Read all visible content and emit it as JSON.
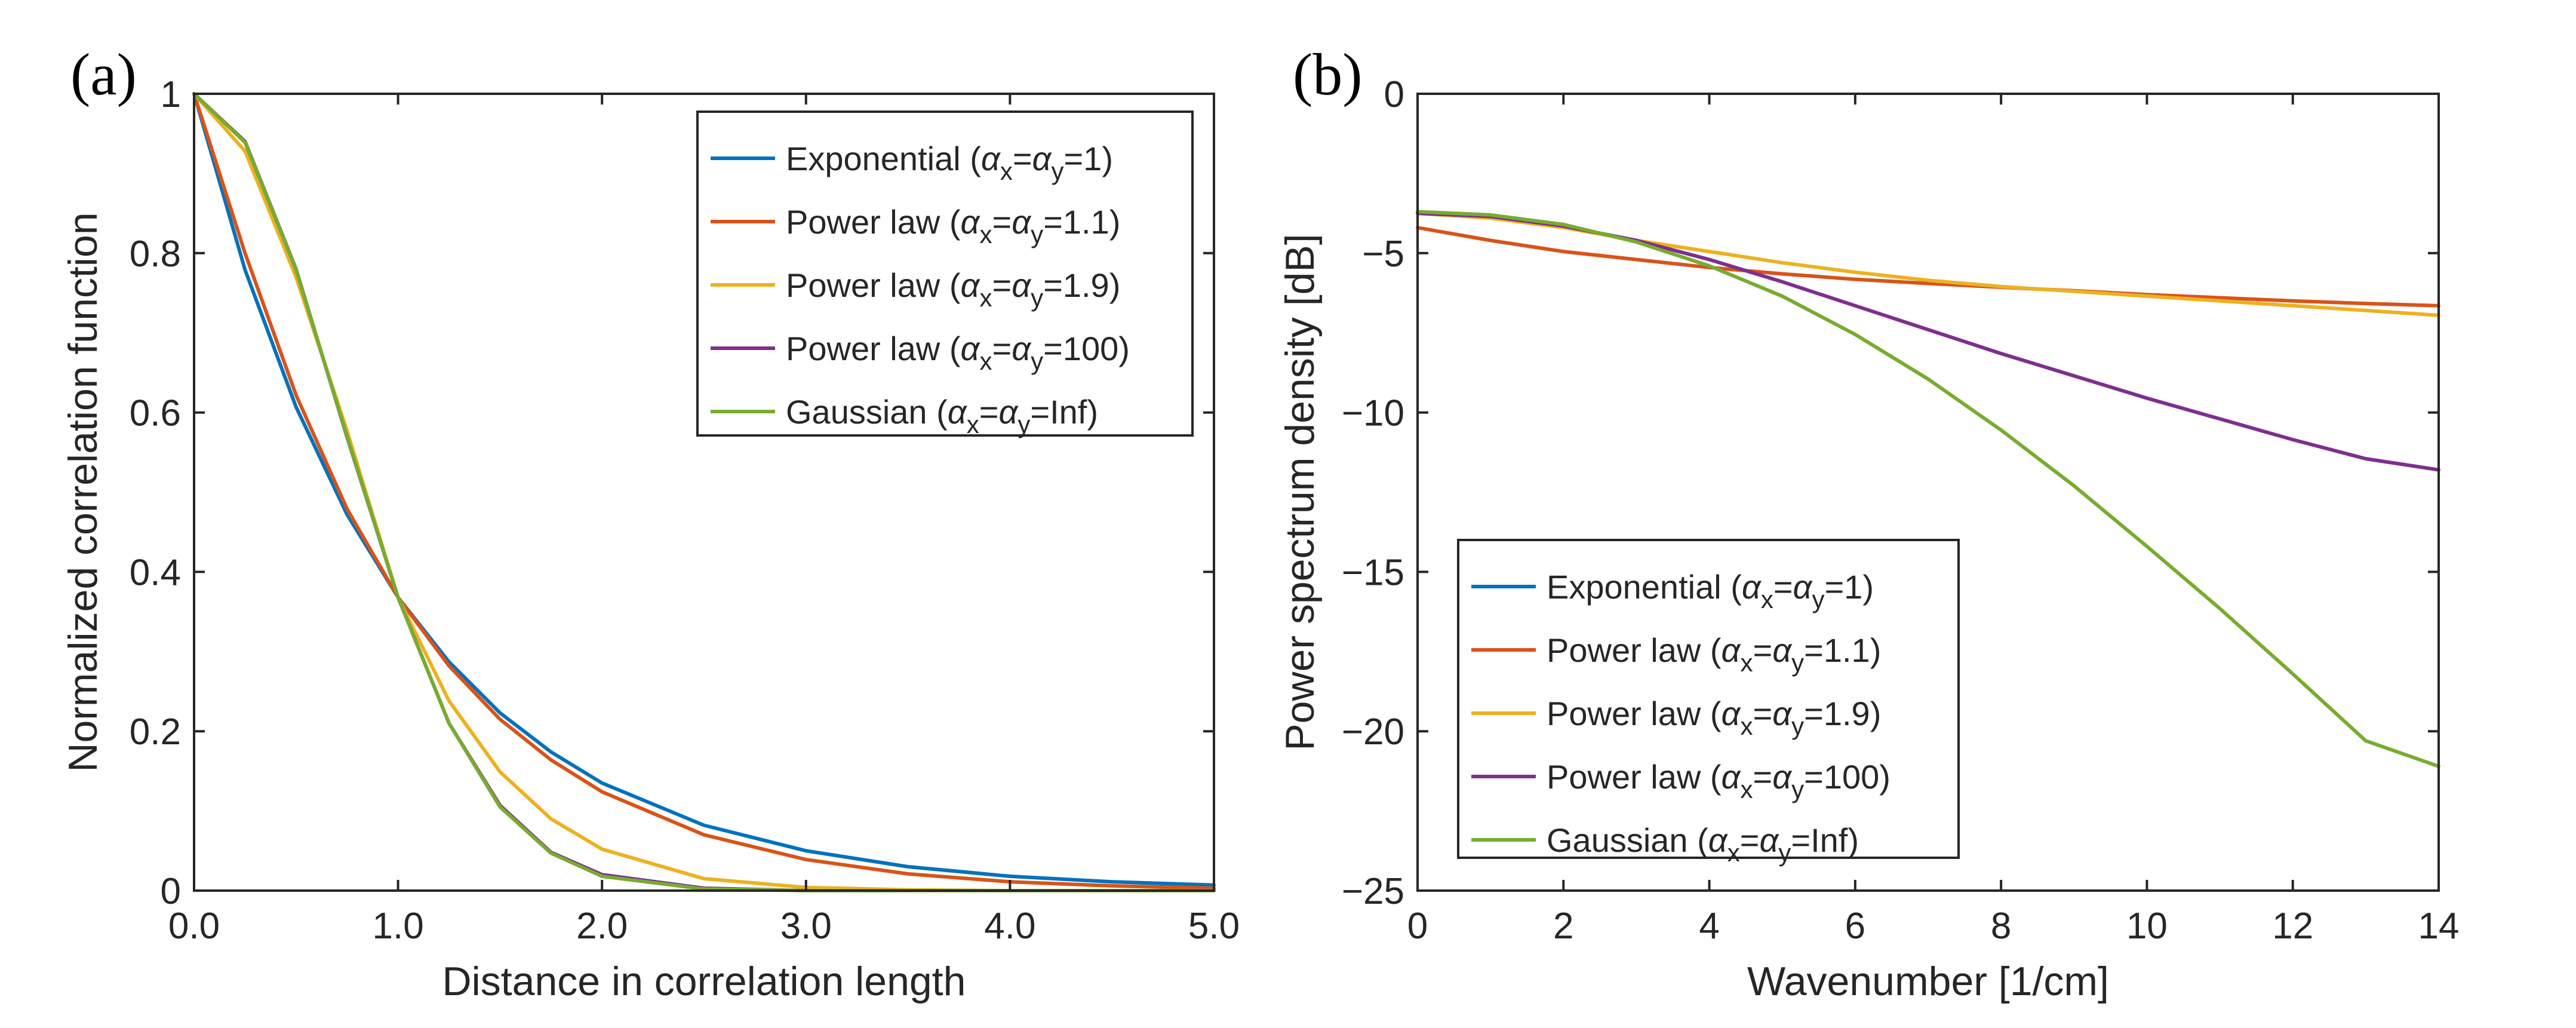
{
  "chart_data": [
    {
      "id": "a",
      "panel_label": "(a)",
      "type": "line",
      "xlabel": "Distance in correlation length",
      "ylabel": "Normalized correlation function",
      "xlim": [
        0,
        5
      ],
      "ylim": [
        0,
        1
      ],
      "xticks": [
        0,
        1,
        2,
        3,
        4,
        5
      ],
      "xtick_labels": [
        "0.0",
        "1.0",
        "2.0",
        "3.0",
        "4.0",
        "5.0"
      ],
      "yticks": [
        0,
        0.2,
        0.4,
        0.6,
        0.8,
        1
      ],
      "ytick_labels": [
        "0",
        "0.2",
        "0.4",
        "0.6",
        "0.8",
        "1"
      ],
      "legend_position": "top-right",
      "series": [
        {
          "name": "Exponential",
          "alpha_x": "α",
          "x_sub": "x",
          "eq1": "=",
          "alpha_y": "α",
          "y_sub": "y",
          "eq2": "=",
          "alpha_value": "1",
          "color": "#0072BD",
          "x": [
            0,
            0.25,
            0.5,
            0.75,
            1,
            1.25,
            1.5,
            1.75,
            2,
            2.5,
            3,
            3.5,
            4,
            4.5,
            5
          ],
          "values": [
            1,
            0.779,
            0.607,
            0.472,
            0.368,
            0.287,
            0.223,
            0.174,
            0.135,
            0.082,
            0.05,
            0.03,
            0.018,
            0.011,
            0.007
          ]
        },
        {
          "name": "Power law",
          "alpha_x": "α",
          "x_sub": "x",
          "eq1": "=",
          "alpha_y": "α",
          "y_sub": "y",
          "eq2": "=",
          "alpha_value": "1.1",
          "color": "#D95319",
          "x": [
            0,
            0.25,
            0.5,
            0.75,
            1,
            1.25,
            1.5,
            1.75,
            2,
            2.5,
            3,
            3.5,
            4,
            4.5,
            5
          ],
          "values": [
            1,
            0.8,
            0.622,
            0.479,
            0.368,
            0.282,
            0.215,
            0.164,
            0.124,
            0.07,
            0.039,
            0.021,
            0.011,
            0.006,
            0.003
          ]
        },
        {
          "name": "Power law",
          "alpha_x": "α",
          "x_sub": "x",
          "eq1": "=",
          "alpha_y": "α",
          "y_sub": "y",
          "eq2": "=",
          "alpha_value": "1.9",
          "color": "#EDB120",
          "x": [
            0,
            0.25,
            0.5,
            0.75,
            1,
            1.25,
            1.5,
            1.75,
            2,
            2.5,
            3,
            3.5,
            4,
            4.5,
            5
          ],
          "values": [
            1,
            0.928,
            0.77,
            0.577,
            0.368,
            0.238,
            0.149,
            0.09,
            0.052,
            0.015,
            0.004,
            0.001,
            0,
            0,
            0
          ]
        },
        {
          "name": "Power law",
          "alpha_x": "α",
          "x_sub": "x",
          "eq1": "=",
          "alpha_y": "α",
          "y_sub": "y",
          "eq2": "=",
          "alpha_value": "100",
          "color": "#7E2F8E",
          "x": [
            0,
            0.25,
            0.5,
            0.75,
            1,
            1.25,
            1.5,
            1.75,
            2,
            2.5,
            3,
            3.5,
            4,
            4.5,
            5
          ],
          "values": [
            1,
            0.94,
            0.78,
            0.569,
            0.368,
            0.21,
            0.107,
            0.048,
            0.02,
            0.003,
            0,
            0,
            0,
            0,
            0
          ]
        },
        {
          "name": "Gaussian",
          "alpha_x": "α",
          "x_sub": "x",
          "eq1": "=",
          "alpha_y": "α",
          "y_sub": "y",
          "eq2": "=",
          "alpha_value": "Inf",
          "color": "#77AC30",
          "x": [
            0,
            0.25,
            0.5,
            0.75,
            1,
            1.25,
            1.5,
            1.75,
            2,
            2.5,
            3,
            3.5,
            4,
            4.5,
            5
          ],
          "values": [
            1,
            0.939,
            0.779,
            0.57,
            0.368,
            0.21,
            0.105,
            0.047,
            0.018,
            0.002,
            0,
            0,
            0,
            0,
            0
          ]
        }
      ]
    },
    {
      "id": "b",
      "panel_label": "(b)",
      "type": "line",
      "xlabel": "Wavenumber [1/cm]",
      "ylabel": "Power spectrum density [dB]",
      "xlim": [
        0,
        14
      ],
      "ylim": [
        -25,
        0
      ],
      "xticks": [
        0,
        2,
        4,
        6,
        8,
        10,
        12,
        14
      ],
      "xtick_labels": [
        "0",
        "2",
        "4",
        "6",
        "8",
        "10",
        "12",
        "14"
      ],
      "yticks": [
        -25,
        -20,
        -15,
        -10,
        -5,
        0
      ],
      "ytick_labels": [
        "−25",
        "−20",
        "−15",
        "−10",
        "−5",
        "0"
      ],
      "legend_position": "bottom-left",
      "series": [
        {
          "name": "Exponential",
          "alpha_x": "α",
          "x_sub": "x",
          "eq1": "=",
          "alpha_y": "α",
          "y_sub": "y",
          "eq2": "=",
          "alpha_value": "1",
          "color": "#0072BD",
          "x": [],
          "values": []
        },
        {
          "name": "Power law",
          "alpha_x": "α",
          "x_sub": "x",
          "eq1": "=",
          "alpha_y": "α",
          "y_sub": "y",
          "eq2": "=",
          "alpha_value": "1.1",
          "color": "#D95319",
          "x": [
            0,
            1,
            2,
            3,
            4,
            5,
            6,
            7,
            8,
            9,
            10,
            11,
            12,
            13,
            14
          ],
          "values": [
            -4.2,
            -4.6,
            -4.95,
            -5.2,
            -5.45,
            -5.65,
            -5.82,
            -5.95,
            -6.07,
            -6.18,
            -6.3,
            -6.4,
            -6.5,
            -6.58,
            -6.65
          ]
        },
        {
          "name": "Power law",
          "alpha_x": "α",
          "x_sub": "x",
          "eq1": "=",
          "alpha_y": "α",
          "y_sub": "y",
          "eq2": "=",
          "alpha_value": "1.9",
          "color": "#EDB120",
          "x": [
            0,
            1,
            2,
            3,
            4,
            5,
            6,
            7,
            8,
            9,
            10,
            11,
            12,
            13,
            14
          ],
          "values": [
            -3.75,
            -3.9,
            -4.2,
            -4.6,
            -4.95,
            -5.3,
            -5.6,
            -5.85,
            -6.05,
            -6.2,
            -6.35,
            -6.5,
            -6.65,
            -6.8,
            -6.95
          ]
        },
        {
          "name": "Power law",
          "alpha_x": "α",
          "x_sub": "x",
          "eq1": "=",
          "alpha_y": "α",
          "y_sub": "y",
          "eq2": "=",
          "alpha_value": "100",
          "color": "#7E2F8E",
          "x": [
            0,
            1,
            2,
            3,
            4,
            5,
            6,
            7,
            8,
            9,
            10,
            11,
            12,
            13,
            14
          ],
          "values": [
            -3.75,
            -3.85,
            -4.15,
            -4.6,
            -5.2,
            -5.9,
            -6.65,
            -7.4,
            -8.15,
            -8.85,
            -9.55,
            -10.2,
            -10.85,
            -11.45,
            -11.8
          ]
        },
        {
          "name": "Gaussian",
          "alpha_x": "α",
          "x_sub": "x",
          "eq1": "=",
          "alpha_y": "α",
          "y_sub": "y",
          "eq2": "=",
          "alpha_value": "Inf",
          "color": "#77AC30",
          "x": [
            0,
            1,
            2,
            3,
            4,
            5,
            6,
            7,
            8,
            9,
            10,
            11,
            12,
            13,
            14
          ],
          "values": [
            -3.7,
            -3.8,
            -4.1,
            -4.65,
            -5.4,
            -6.35,
            -7.55,
            -8.95,
            -10.55,
            -12.3,
            -14.2,
            -16.15,
            -18.2,
            -20.3,
            -21.1
          ]
        }
      ]
    }
  ]
}
